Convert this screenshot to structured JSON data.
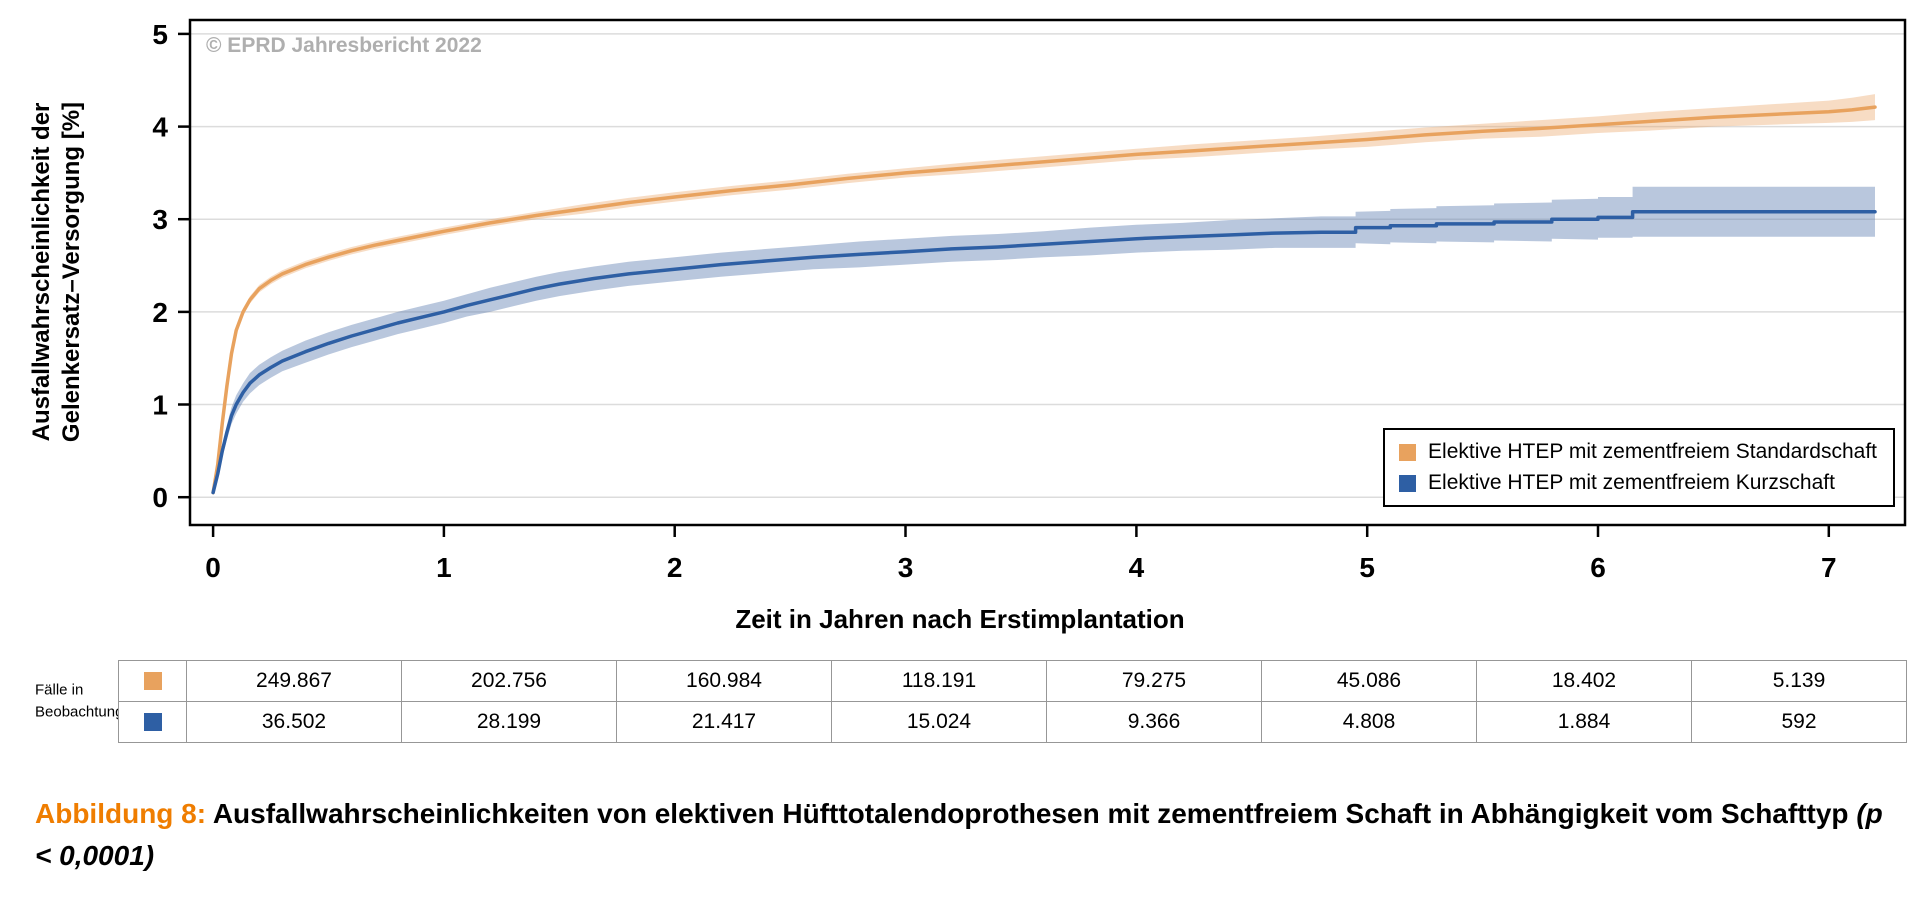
{
  "figure": {
    "copyright": "© EPRD Jahresbericht 2022"
  },
  "chart_data": {
    "type": "line",
    "title": "",
    "xlabel": "Zeit in Jahren nach Erstimplantation",
    "ylabel": "Ausfallwahrscheinlichkeit der Gelenkersatz–Versorgung [%]",
    "ylabel_lines": [
      "Ausfallwahrscheinlichkeit der",
      "Gelenkersatz–Versorgung [%]"
    ],
    "xlim": [
      -0.1,
      7.33
    ],
    "ylim": [
      -0.3,
      5.15
    ],
    "xticks": [
      0,
      1,
      2,
      3,
      4,
      5,
      6,
      7
    ],
    "yticks": [
      0,
      1,
      2,
      3,
      4,
      5
    ],
    "grid": "horizontal-only",
    "legend_position": "inside-bottom-right",
    "series": [
      {
        "key": "standardschaft",
        "name": "Elektive HTEP mit zementfreiem Standardschaft",
        "color": "#E8A25E",
        "band_color": "rgba(233,164,100,0.38)",
        "points": [
          [
            0.0,
            0.05,
            0.02
          ],
          [
            0.02,
            0.35,
            0.03
          ],
          [
            0.04,
            0.8,
            0.03
          ],
          [
            0.06,
            1.2,
            0.04
          ],
          [
            0.08,
            1.55,
            0.04
          ],
          [
            0.1,
            1.8,
            0.04
          ],
          [
            0.13,
            2.0,
            0.04
          ],
          [
            0.16,
            2.13,
            0.04
          ],
          [
            0.2,
            2.25,
            0.04
          ],
          [
            0.25,
            2.34,
            0.04
          ],
          [
            0.3,
            2.41,
            0.04
          ],
          [
            0.4,
            2.51,
            0.04
          ],
          [
            0.5,
            2.59,
            0.04
          ],
          [
            0.6,
            2.66,
            0.04
          ],
          [
            0.7,
            2.72,
            0.04
          ],
          [
            0.8,
            2.77,
            0.04
          ],
          [
            0.9,
            2.82,
            0.04
          ],
          [
            1.0,
            2.87,
            0.04
          ],
          [
            1.2,
            2.96,
            0.04
          ],
          [
            1.4,
            3.04,
            0.04
          ],
          [
            1.6,
            3.11,
            0.05
          ],
          [
            1.8,
            3.18,
            0.05
          ],
          [
            2.0,
            3.24,
            0.05
          ],
          [
            2.25,
            3.31,
            0.05
          ],
          [
            2.5,
            3.37,
            0.05
          ],
          [
            2.75,
            3.44,
            0.05
          ],
          [
            3.0,
            3.5,
            0.05
          ],
          [
            3.25,
            3.55,
            0.06
          ],
          [
            3.5,
            3.6,
            0.06
          ],
          [
            3.75,
            3.65,
            0.06
          ],
          [
            4.0,
            3.7,
            0.06
          ],
          [
            4.25,
            3.74,
            0.07
          ],
          [
            4.5,
            3.78,
            0.07
          ],
          [
            4.75,
            3.82,
            0.07
          ],
          [
            5.0,
            3.86,
            0.08
          ],
          [
            5.25,
            3.91,
            0.08
          ],
          [
            5.5,
            3.95,
            0.08
          ],
          [
            5.75,
            3.98,
            0.09
          ],
          [
            6.0,
            4.02,
            0.09
          ],
          [
            6.25,
            4.06,
            0.1
          ],
          [
            6.5,
            4.1,
            0.1
          ],
          [
            6.75,
            4.13,
            0.11
          ],
          [
            7.0,
            4.16,
            0.12
          ],
          [
            7.1,
            4.18,
            0.13
          ],
          [
            7.2,
            4.21,
            0.14
          ]
        ]
      },
      {
        "key": "kurzschaft",
        "name": "Elektive HTEP mit zementfreiem Kurzschaft",
        "color": "#2E5FA4",
        "band_color": "rgba(88,122,175,0.42)",
        "points": [
          [
            0.0,
            0.05,
            0.03
          ],
          [
            0.02,
            0.25,
            0.05
          ],
          [
            0.04,
            0.5,
            0.07
          ],
          [
            0.06,
            0.7,
            0.08
          ],
          [
            0.08,
            0.88,
            0.09
          ],
          [
            0.1,
            1.0,
            0.1
          ],
          [
            0.13,
            1.13,
            0.1
          ],
          [
            0.16,
            1.23,
            0.11
          ],
          [
            0.2,
            1.32,
            0.11
          ],
          [
            0.25,
            1.4,
            0.11
          ],
          [
            0.3,
            1.47,
            0.11
          ],
          [
            0.4,
            1.57,
            0.12
          ],
          [
            0.5,
            1.66,
            0.12
          ],
          [
            0.6,
            1.74,
            0.12
          ],
          [
            0.7,
            1.81,
            0.12
          ],
          [
            0.8,
            1.88,
            0.12
          ],
          [
            0.9,
            1.94,
            0.12
          ],
          [
            1.0,
            2.0,
            0.12
          ],
          [
            1.1,
            2.07,
            0.12
          ],
          [
            1.2,
            2.13,
            0.13
          ],
          [
            1.3,
            2.19,
            0.13
          ],
          [
            1.4,
            2.25,
            0.13
          ],
          [
            1.5,
            2.3,
            0.13
          ],
          [
            1.65,
            2.36,
            0.13
          ],
          [
            1.8,
            2.41,
            0.13
          ],
          [
            2.0,
            2.46,
            0.13
          ],
          [
            2.2,
            2.51,
            0.13
          ],
          [
            2.4,
            2.55,
            0.13
          ],
          [
            2.6,
            2.59,
            0.13
          ],
          [
            2.8,
            2.62,
            0.14
          ],
          [
            3.0,
            2.65,
            0.14
          ],
          [
            3.2,
            2.68,
            0.14
          ],
          [
            3.4,
            2.7,
            0.14
          ],
          [
            3.6,
            2.73,
            0.14
          ],
          [
            3.8,
            2.76,
            0.15
          ],
          [
            4.0,
            2.79,
            0.15
          ],
          [
            4.2,
            2.81,
            0.15
          ],
          [
            4.4,
            2.83,
            0.16
          ],
          [
            4.6,
            2.85,
            0.16
          ],
          [
            4.8,
            2.86,
            0.17
          ],
          [
            4.95,
            2.86,
            0.17
          ],
          [
            4.95,
            2.91,
            0.17
          ],
          [
            5.1,
            2.91,
            0.18
          ],
          [
            5.1,
            2.93,
            0.18
          ],
          [
            5.3,
            2.93,
            0.19
          ],
          [
            5.3,
            2.95,
            0.19
          ],
          [
            5.55,
            2.95,
            0.2
          ],
          [
            5.55,
            2.97,
            0.2
          ],
          [
            5.8,
            2.97,
            0.21
          ],
          [
            5.8,
            3.0,
            0.21
          ],
          [
            6.0,
            3.0,
            0.22
          ],
          [
            6.0,
            3.02,
            0.22
          ],
          [
            6.15,
            3.02,
            0.22
          ],
          [
            6.15,
            3.08,
            0.27
          ],
          [
            7.2,
            3.08,
            0.27
          ]
        ]
      }
    ]
  },
  "risk_table": {
    "label_lines": [
      "Fälle in",
      "Beobachtung"
    ],
    "rows": [
      {
        "series": "standardschaft",
        "color": "#E8A25E",
        "values": [
          "249.867",
          "202.756",
          "160.984",
          "118.191",
          "79.275",
          "45.086",
          "18.402",
          "5.139"
        ]
      },
      {
        "series": "kurzschaft",
        "color": "#2E5FA4",
        "values": [
          "36.502",
          "28.199",
          "21.417",
          "15.024",
          "9.366",
          "4.808",
          "1.884",
          "592"
        ]
      }
    ]
  },
  "caption": {
    "label": "Abbildung 8:",
    "label_color": "#EF7D00",
    "text": "Ausfallwahrscheinlichkeiten von elektiven Hüfttotalendoprothesen mit zementfreiem Schaft in Abhängigkeit vom Schafttyp",
    "stat": "(p < 0,0001)"
  }
}
